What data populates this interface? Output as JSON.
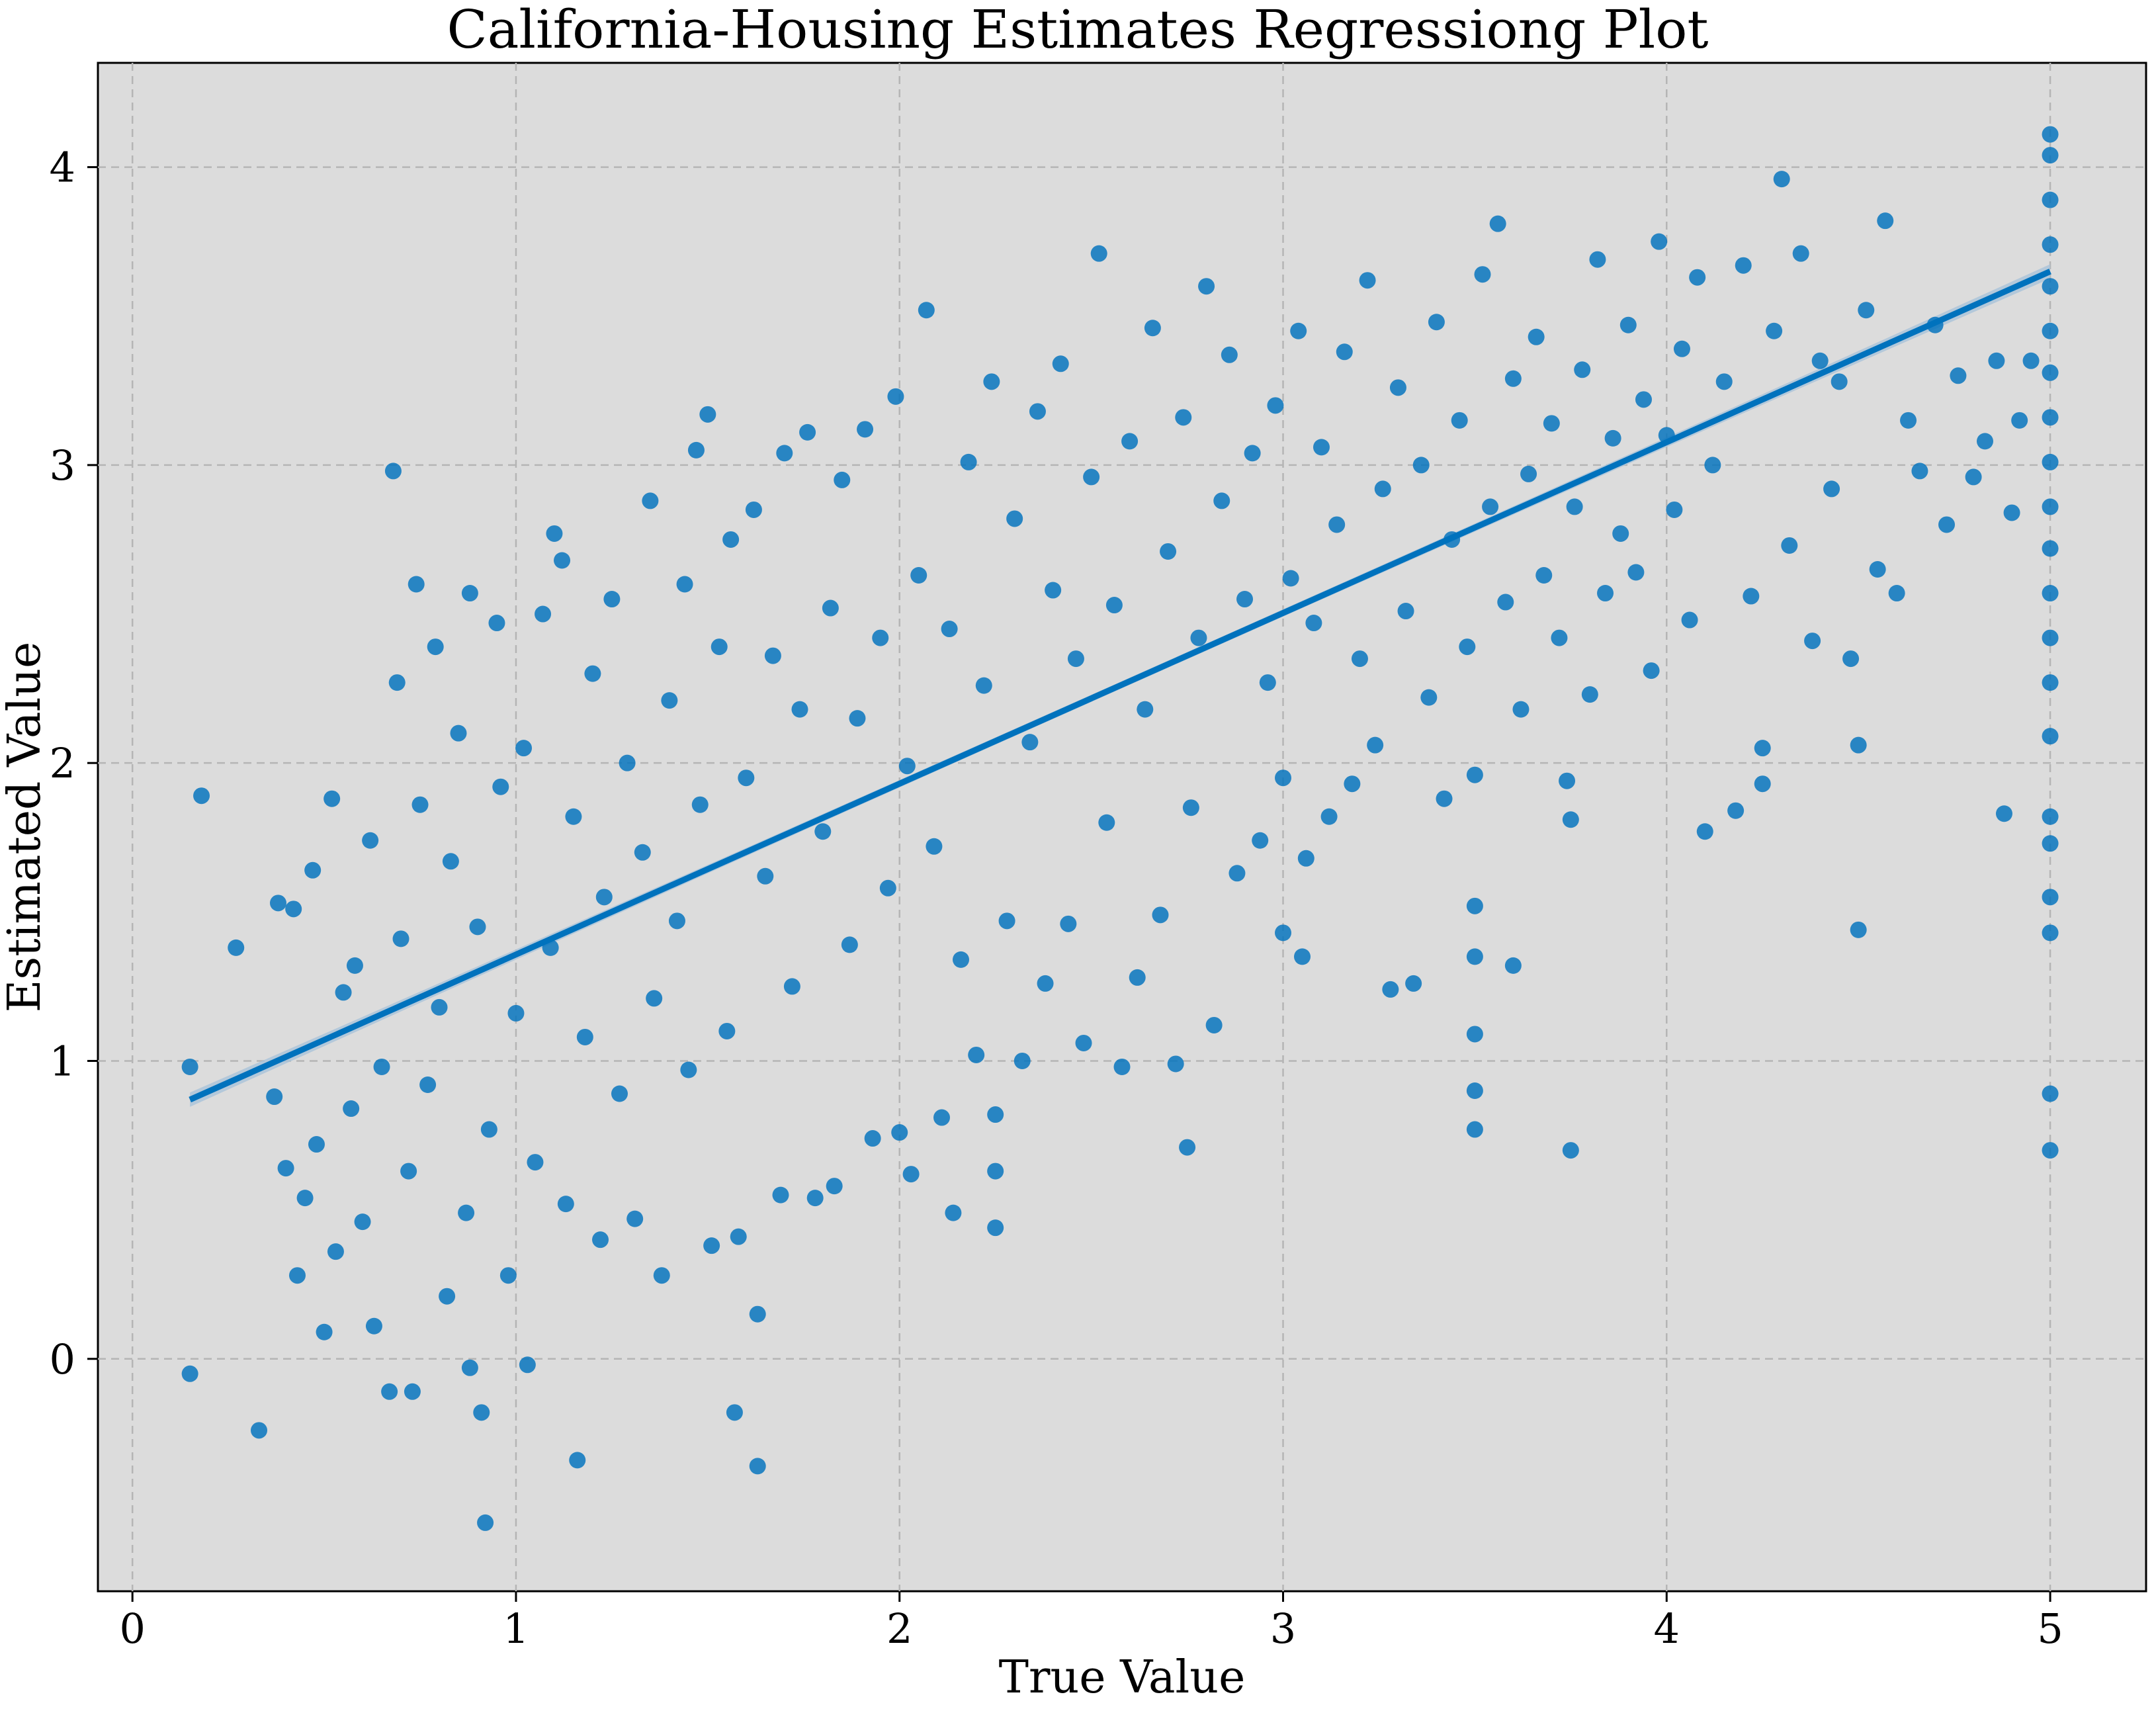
{
  "chart_data": {
    "type": "scatter",
    "title": "California-Housing Estimates Regressiong Plot",
    "xlabel": "True Value",
    "ylabel": "Estimated Value",
    "xlim": [
      -0.09,
      5.25
    ],
    "ylim": [
      -0.78,
      4.35
    ],
    "xticks": [
      0,
      1,
      2,
      3,
      4,
      5
    ],
    "yticks": [
      0,
      1,
      2,
      3,
      4
    ],
    "grid": true,
    "background_color": "#dcdcdc",
    "point_color": "#0072bd",
    "regression_line": {
      "x": [
        0.15,
        5.0
      ],
      "y": [
        0.87,
        3.65
      ],
      "ci_color": "#a9c3d9"
    },
    "series": [
      {
        "points": [
          [
            0.15,
            -0.05
          ],
          [
            0.18,
            1.89
          ],
          [
            0.15,
            0.98
          ],
          [
            0.27,
            1.38
          ],
          [
            0.33,
            -0.24
          ],
          [
            0.37,
            0.88
          ],
          [
            0.38,
            1.53
          ],
          [
            0.4,
            0.64
          ],
          [
            0.42,
            1.51
          ],
          [
            0.43,
            0.28
          ],
          [
            0.45,
            0.54
          ],
          [
            0.47,
            1.64
          ],
          [
            0.48,
            0.72
          ],
          [
            0.5,
            0.09
          ],
          [
            0.52,
            1.88
          ],
          [
            0.53,
            0.36
          ],
          [
            0.55,
            1.23
          ],
          [
            0.57,
            0.84
          ],
          [
            0.58,
            1.32
          ],
          [
            0.6,
            0.46
          ],
          [
            0.62,
            1.74
          ],
          [
            0.63,
            0.11
          ],
          [
            0.65,
            0.98
          ],
          [
            0.67,
            -0.11
          ],
          [
            0.68,
            2.98
          ],
          [
            0.69,
            2.27
          ],
          [
            0.7,
            1.41
          ],
          [
            0.72,
            0.63
          ],
          [
            0.73,
            -0.11
          ],
          [
            0.74,
            2.6
          ],
          [
            0.75,
            1.86
          ],
          [
            0.77,
            0.92
          ],
          [
            0.79,
            2.39
          ],
          [
            0.8,
            1.18
          ],
          [
            0.82,
            0.21
          ],
          [
            0.83,
            1.67
          ],
          [
            0.85,
            2.1
          ],
          [
            0.87,
            0.49
          ],
          [
            0.88,
            -0.03
          ],
          [
            0.88,
            2.57
          ],
          [
            0.9,
            1.45
          ],
          [
            0.91,
            -0.18
          ],
          [
            0.92,
            -0.55
          ],
          [
            0.93,
            0.77
          ],
          [
            0.95,
            2.47
          ],
          [
            0.96,
            1.92
          ],
          [
            0.98,
            0.28
          ],
          [
            1.0,
            1.16
          ],
          [
            1.02,
            2.05
          ],
          [
            1.03,
            -0.02
          ],
          [
            1.05,
            0.66
          ],
          [
            1.07,
            2.5
          ],
          [
            1.09,
            1.38
          ],
          [
            1.1,
            2.77
          ],
          [
            1.12,
            2.68
          ],
          [
            1.13,
            0.52
          ],
          [
            1.15,
            1.82
          ],
          [
            1.16,
            -0.34
          ],
          [
            1.18,
            1.08
          ],
          [
            1.2,
            2.3
          ],
          [
            1.22,
            0.4
          ],
          [
            1.23,
            1.55
          ],
          [
            1.25,
            2.55
          ],
          [
            1.27,
            0.89
          ],
          [
            1.29,
            2.0
          ],
          [
            1.31,
            0.47
          ],
          [
            1.33,
            1.7
          ],
          [
            1.35,
            2.88
          ],
          [
            1.36,
            1.21
          ],
          [
            1.38,
            0.28
          ],
          [
            1.4,
            2.21
          ],
          [
            1.42,
            1.47
          ],
          [
            1.44,
            2.6
          ],
          [
            1.45,
            0.97
          ],
          [
            1.47,
            3.05
          ],
          [
            1.48,
            1.86
          ],
          [
            1.5,
            3.17
          ],
          [
            1.51,
            0.38
          ],
          [
            1.53,
            2.39
          ],
          [
            1.55,
            1.1
          ],
          [
            1.56,
            2.75
          ],
          [
            1.57,
            -0.18
          ],
          [
            1.58,
            0.41
          ],
          [
            1.6,
            1.95
          ],
          [
            1.62,
            2.85
          ],
          [
            1.63,
            -0.36
          ],
          [
            1.63,
            0.15
          ],
          [
            1.65,
            1.62
          ],
          [
            1.67,
            2.36
          ],
          [
            1.69,
            0.55
          ],
          [
            1.7,
            3.04
          ],
          [
            1.72,
            1.25
          ],
          [
            1.74,
            2.18
          ],
          [
            1.76,
            3.11
          ],
          [
            1.78,
            0.54
          ],
          [
            1.8,
            1.77
          ],
          [
            1.82,
            2.52
          ],
          [
            1.83,
            0.58
          ],
          [
            1.85,
            2.95
          ],
          [
            1.87,
            1.39
          ],
          [
            1.89,
            2.15
          ],
          [
            1.91,
            3.12
          ],
          [
            1.93,
            0.74
          ],
          [
            1.95,
            2.42
          ],
          [
            1.97,
            1.58
          ],
          [
            1.99,
            3.23
          ],
          [
            2.0,
            0.76
          ],
          [
            2.02,
            1.99
          ],
          [
            2.03,
            0.62
          ],
          [
            2.05,
            2.63
          ],
          [
            2.07,
            3.52
          ],
          [
            2.09,
            1.72
          ],
          [
            2.11,
            0.81
          ],
          [
            2.13,
            2.45
          ],
          [
            2.14,
            0.49
          ],
          [
            2.16,
            1.34
          ],
          [
            2.18,
            3.01
          ],
          [
            2.2,
            1.02
          ],
          [
            2.22,
            2.26
          ],
          [
            2.24,
            3.28
          ],
          [
            2.25,
            0.44
          ],
          [
            2.25,
            0.63
          ],
          [
            2.25,
            0.82
          ],
          [
            2.28,
            1.47
          ],
          [
            2.3,
            2.82
          ],
          [
            2.32,
            1.0
          ],
          [
            2.34,
            2.07
          ],
          [
            2.36,
            3.18
          ],
          [
            2.38,
            1.26
          ],
          [
            2.4,
            2.58
          ],
          [
            2.42,
            3.34
          ],
          [
            2.44,
            1.46
          ],
          [
            2.46,
            2.35
          ],
          [
            2.48,
            1.06
          ],
          [
            2.5,
            2.96
          ],
          [
            2.52,
            3.71
          ],
          [
            2.54,
            1.8
          ],
          [
            2.56,
            2.53
          ],
          [
            2.58,
            0.98
          ],
          [
            2.6,
            3.08
          ],
          [
            2.62,
            1.28
          ],
          [
            2.64,
            2.18
          ],
          [
            2.66,
            3.46
          ],
          [
            2.68,
            1.49
          ],
          [
            2.7,
            2.71
          ],
          [
            2.72,
            0.99
          ],
          [
            2.74,
            3.16
          ],
          [
            2.75,
            0.71
          ],
          [
            2.76,
            1.85
          ],
          [
            2.78,
            2.42
          ],
          [
            2.8,
            3.6
          ],
          [
            2.82,
            1.12
          ],
          [
            2.84,
            2.88
          ],
          [
            2.86,
            3.37
          ],
          [
            2.88,
            1.63
          ],
          [
            2.9,
            2.55
          ],
          [
            2.92,
            3.04
          ],
          [
            2.94,
            1.74
          ],
          [
            2.96,
            2.27
          ],
          [
            2.98,
            3.2
          ],
          [
            3.0,
            1.43
          ],
          [
            3.0,
            1.95
          ],
          [
            3.02,
            2.62
          ],
          [
            3.04,
            3.45
          ],
          [
            3.05,
            1.35
          ],
          [
            3.06,
            1.68
          ],
          [
            3.08,
            2.47
          ],
          [
            3.1,
            3.06
          ],
          [
            3.12,
            1.82
          ],
          [
            3.14,
            2.8
          ],
          [
            3.16,
            3.38
          ],
          [
            3.18,
            1.93
          ],
          [
            3.2,
            2.35
          ],
          [
            3.22,
            3.62
          ],
          [
            3.24,
            2.06
          ],
          [
            3.26,
            2.92
          ],
          [
            3.28,
            1.24
          ],
          [
            3.3,
            3.26
          ],
          [
            3.32,
            2.51
          ],
          [
            3.34,
            1.26
          ],
          [
            3.36,
            3.0
          ],
          [
            3.38,
            2.22
          ],
          [
            3.4,
            3.48
          ],
          [
            3.42,
            1.88
          ],
          [
            3.44,
            2.75
          ],
          [
            3.46,
            3.15
          ],
          [
            3.48,
            2.39
          ],
          [
            3.5,
            0.77
          ],
          [
            3.5,
            0.9
          ],
          [
            3.5,
            1.09
          ],
          [
            3.5,
            1.35
          ],
          [
            3.5,
            1.52
          ],
          [
            3.5,
            1.96
          ],
          [
            3.52,
            3.64
          ],
          [
            3.54,
            2.86
          ],
          [
            3.56,
            3.81
          ],
          [
            3.58,
            2.54
          ],
          [
            3.6,
            1.32
          ],
          [
            3.6,
            3.29
          ],
          [
            3.62,
            2.18
          ],
          [
            3.64,
            2.97
          ],
          [
            3.66,
            3.43
          ],
          [
            3.68,
            2.63
          ],
          [
            3.7,
            3.14
          ],
          [
            3.72,
            2.42
          ],
          [
            3.74,
            1.94
          ],
          [
            3.75,
            0.7
          ],
          [
            3.75,
            1.81
          ],
          [
            3.76,
            2.86
          ],
          [
            3.78,
            3.32
          ],
          [
            3.8,
            2.23
          ],
          [
            3.82,
            3.69
          ],
          [
            3.84,
            2.57
          ],
          [
            3.86,
            3.09
          ],
          [
            3.88,
            2.77
          ],
          [
            3.9,
            3.47
          ],
          [
            3.92,
            2.64
          ],
          [
            3.94,
            3.22
          ],
          [
            3.96,
            2.31
          ],
          [
            3.98,
            3.75
          ],
          [
            4.0,
            3.1
          ],
          [
            4.02,
            2.85
          ],
          [
            4.04,
            3.39
          ],
          [
            4.06,
            2.48
          ],
          [
            4.08,
            3.63
          ],
          [
            4.1,
            1.77
          ],
          [
            4.12,
            3.0
          ],
          [
            4.15,
            3.28
          ],
          [
            4.18,
            1.84
          ],
          [
            4.2,
            3.67
          ],
          [
            4.22,
            2.56
          ],
          [
            4.25,
            1.93
          ],
          [
            4.25,
            2.05
          ],
          [
            4.28,
            3.45
          ],
          [
            4.3,
            3.96
          ],
          [
            4.32,
            2.73
          ],
          [
            4.35,
            3.71
          ],
          [
            4.38,
            2.41
          ],
          [
            4.4,
            3.35
          ],
          [
            4.43,
            2.92
          ],
          [
            4.45,
            3.28
          ],
          [
            4.48,
            2.35
          ],
          [
            4.5,
            1.44
          ],
          [
            4.5,
            2.06
          ],
          [
            4.52,
            3.52
          ],
          [
            4.55,
            2.65
          ],
          [
            4.57,
            3.82
          ],
          [
            4.6,
            2.57
          ],
          [
            4.63,
            3.15
          ],
          [
            4.66,
            2.98
          ],
          [
            4.7,
            3.47
          ],
          [
            4.73,
            2.8
          ],
          [
            4.76,
            3.3
          ],
          [
            4.8,
            2.96
          ],
          [
            4.83,
            3.08
          ],
          [
            4.86,
            3.35
          ],
          [
            4.88,
            1.83
          ],
          [
            4.9,
            2.84
          ],
          [
            4.92,
            3.15
          ],
          [
            4.95,
            3.35
          ],
          [
            5.0,
            0.7
          ],
          [
            5.0,
            0.89
          ],
          [
            5.0,
            1.43
          ],
          [
            5.0,
            1.55
          ],
          [
            5.0,
            1.73
          ],
          [
            5.0,
            1.82
          ],
          [
            5.0,
            2.09
          ],
          [
            5.0,
            2.27
          ],
          [
            5.0,
            2.42
          ],
          [
            5.0,
            2.57
          ],
          [
            5.0,
            2.72
          ],
          [
            5.0,
            2.86
          ],
          [
            5.0,
            3.01
          ],
          [
            5.0,
            3.16
          ],
          [
            5.0,
            3.31
          ],
          [
            5.0,
            3.45
          ],
          [
            5.0,
            3.6
          ],
          [
            5.0,
            3.74
          ],
          [
            5.0,
            3.89
          ],
          [
            5.0,
            4.04
          ],
          [
            5.0,
            4.11
          ]
        ]
      }
    ]
  }
}
